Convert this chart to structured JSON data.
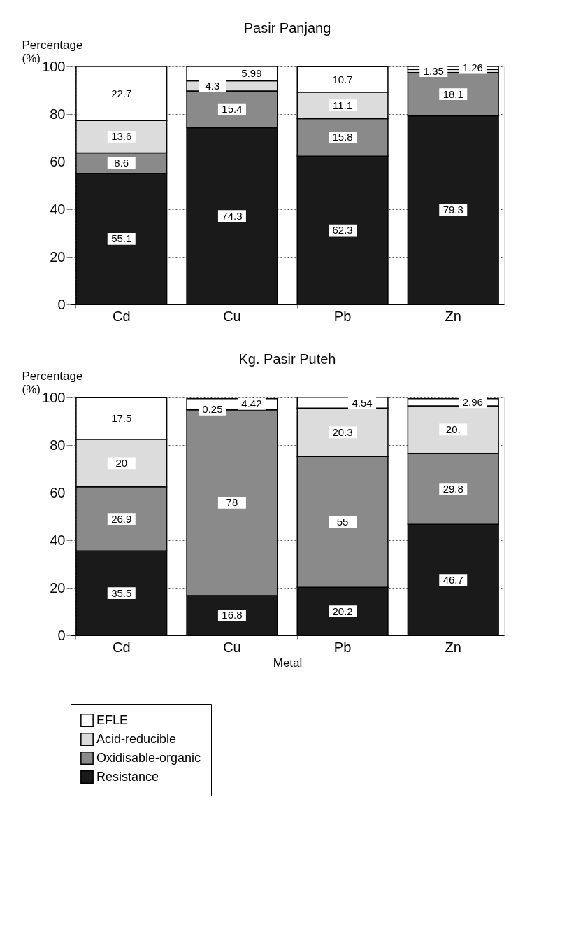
{
  "chart_data": [
    {
      "type": "bar",
      "title": "Pasir Panjang",
      "ylabel": "Percentage\n(%)",
      "categories": [
        "Cd",
        "Cu",
        "Pb",
        "Zn"
      ],
      "stacked": true,
      "ylim": [
        0,
        100
      ],
      "yticks": [
        0,
        20,
        40,
        60,
        80,
        100
      ],
      "grid": true,
      "legend": "bottom",
      "series": [
        {
          "name": "Resistance",
          "color": "#1a1a1a",
          "values": [
            55.1,
            74.3,
            62.3,
            79.3
          ],
          "value_labels": [
            "55.1",
            "74.3",
            "62.3",
            "79.3"
          ]
        },
        {
          "name": "Oxidisable-organic",
          "color": "#8a8a8a",
          "values": [
            8.6,
            15.4,
            15.8,
            18.1
          ],
          "value_labels": [
            "8.6",
            "15.4",
            "15.8",
            "18.1"
          ]
        },
        {
          "name": "Acid-reducible",
          "color": "#dcdcdc",
          "values": [
            13.6,
            4.3,
            11.1,
            1.35
          ],
          "value_labels": [
            "13.6",
            "4.3",
            "11.1",
            "1.35"
          ]
        },
        {
          "name": "EFLE",
          "color": "#ffffff",
          "values": [
            22.7,
            5.99,
            10.7,
            1.26
          ],
          "value_labels": [
            "22.7",
            "5.99",
            "10.7",
            "1.26"
          ]
        }
      ]
    },
    {
      "type": "bar",
      "title": "Kg. Pasir Puteh",
      "ylabel": "Percentage\n(%)",
      "xlabel": "Metal",
      "categories": [
        "Cd",
        "Cu",
        "Pb",
        "Zn"
      ],
      "stacked": true,
      "ylim": [
        0,
        100
      ],
      "yticks": [
        0,
        20,
        40,
        60,
        80,
        100
      ],
      "grid": true,
      "legend": "bottom",
      "series": [
        {
          "name": "Resistance",
          "color": "#1a1a1a",
          "values": [
            35.5,
            16.8,
            20.2,
            46.7
          ],
          "value_labels": [
            "35.5",
            "16.8",
            "20.2",
            "46.7"
          ]
        },
        {
          "name": "Oxidisable-organic",
          "color": "#8a8a8a",
          "values": [
            26.9,
            78,
            55,
            29.8
          ],
          "value_labels": [
            "26.9",
            "78",
            "55",
            "29.8"
          ]
        },
        {
          "name": "Acid-reducible",
          "color": "#dcdcdc",
          "values": [
            20,
            0.25,
            20.3,
            20
          ],
          "value_labels": [
            "20",
            "0.25",
            "20.3",
            "20."
          ]
        },
        {
          "name": "EFLE",
          "color": "#ffffff",
          "values": [
            17.5,
            4.42,
            4.54,
            2.96
          ],
          "value_labels": [
            "17.5",
            "4.42",
            "4.54",
            "2.96"
          ]
        }
      ]
    }
  ]
}
